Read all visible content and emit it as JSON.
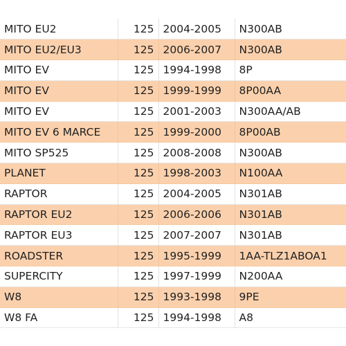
{
  "colors": {
    "row_alt": "#fbd1ad",
    "row_plain": "#ffffff",
    "text": "#1f1f1f"
  },
  "rows": [
    {
      "model": "MITO EU2",
      "cc": "125",
      "years": "2004-2005",
      "code": "N300AB",
      "highlight": false
    },
    {
      "model": "MITO EU2/EU3",
      "cc": "125",
      "years": "2006-2007",
      "code": "N300AB",
      "highlight": true
    },
    {
      "model": "MITO EV",
      "cc": "125",
      "years": "1994-1998",
      "code": "8P",
      "highlight": false
    },
    {
      "model": "MITO EV",
      "cc": "125",
      "years": "1999-1999",
      "code": "8P00AA",
      "highlight": true
    },
    {
      "model": "MITO EV",
      "cc": "125",
      "years": "2001-2003",
      "code": "N300AA/AB",
      "highlight": false
    },
    {
      "model": "MITO EV 6 MARCE",
      "cc": "125",
      "years": "1999-2000",
      "code": "8P00AB",
      "highlight": true
    },
    {
      "model": "MITO SP525",
      "cc": "125",
      "years": "2008-2008",
      "code": "N300AB",
      "highlight": false
    },
    {
      "model": "PLANET",
      "cc": "125",
      "years": "1998-2003",
      "code": "N100AA",
      "highlight": true
    },
    {
      "model": "RAPTOR",
      "cc": "125",
      "years": "2004-2005",
      "code": "N301AB",
      "highlight": false
    },
    {
      "model": "RAPTOR EU2",
      "cc": "125",
      "years": "2006-2006",
      "code": "N301AB",
      "highlight": true
    },
    {
      "model": "RAPTOR EU3",
      "cc": "125",
      "years": "2007-2007",
      "code": "N301AB",
      "highlight": false
    },
    {
      "model": "ROADSTER",
      "cc": "125",
      "years": "1995-1999",
      "code": "1AA-TLZ1ABOA1",
      "highlight": true
    },
    {
      "model": "SUPERCITY",
      "cc": "125",
      "years": "1997-1999",
      "code": "N200AA",
      "highlight": false
    },
    {
      "model": "W8",
      "cc": "125",
      "years": "1993-1998",
      "code": "9PE",
      "highlight": true
    },
    {
      "model": "W8 FA",
      "cc": "125",
      "years": "1994-1998",
      "code": "A8",
      "highlight": false
    }
  ]
}
